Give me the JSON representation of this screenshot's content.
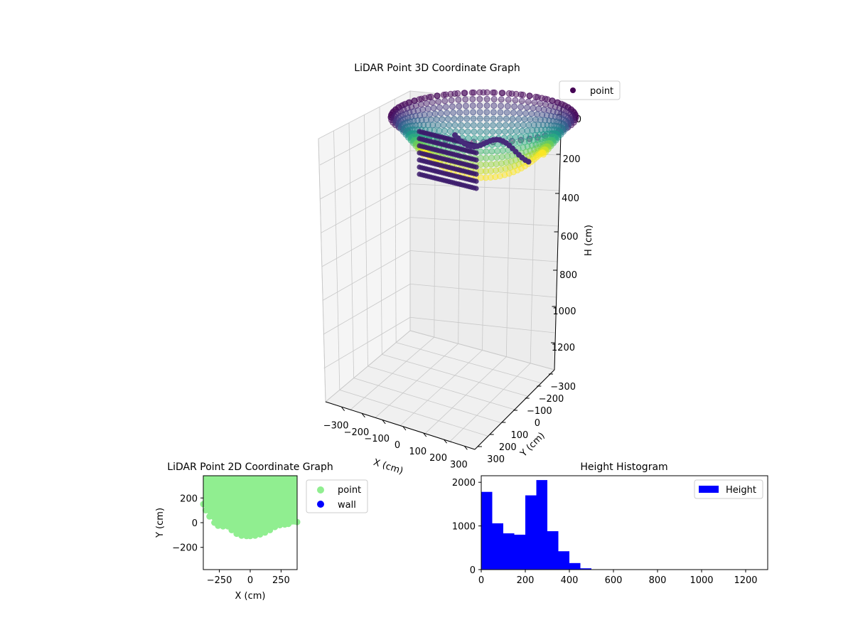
{
  "figure": {
    "background": "#ffffff"
  },
  "chart_data": [
    {
      "type": "scatter",
      "title": "LiDAR Point 3D Coordinate Graph",
      "xlabel": "X (cm)",
      "ylabel": "Y (cm)",
      "zlabel": "H (cm)",
      "xticks": [
        "−300",
        "−200",
        "−100",
        "0",
        "100",
        "200",
        "300"
      ],
      "yticks": [
        "−300",
        "−200",
        "−100",
        "0",
        "100",
        "200",
        "300"
      ],
      "zticks": [
        "0",
        "200",
        "400",
        "600",
        "800",
        "1000",
        "1200"
      ],
      "zinverted": true,
      "grid": true,
      "colormap": "viridis",
      "legend": {
        "position": "top-right",
        "entries": [
          {
            "label": "point",
            "color": "#440154"
          }
        ]
      },
      "series": [
        {
          "name": "point",
          "shape": "bowl",
          "x_range": [
            -350,
            350
          ],
          "y_range": [
            -350,
            350
          ],
          "h_range": [
            0,
            430
          ]
        }
      ]
    },
    {
      "type": "scatter",
      "title": "LiDAR Point 2D Coordinate Graph",
      "xlabel": "X (cm)",
      "ylabel": "Y (cm)",
      "xlim": [
        -380,
        380
      ],
      "ylim": [
        -380,
        380
      ],
      "xticks": [
        "−250",
        "0",
        "250"
      ],
      "yticks": [
        "−200",
        "0",
        "200"
      ],
      "legend": {
        "position": "outside-right",
        "entries": [
          {
            "label": "point",
            "color": "#90ee90"
          },
          {
            "label": "wall",
            "color": "#0000ff"
          }
        ]
      },
      "boundary": {
        "x": [
          -380,
          -360,
          -330,
          -290,
          -260,
          -220,
          -180,
          -150,
          -110,
          -70,
          -30,
          0,
          40,
          80,
          120,
          160,
          200,
          240,
          280,
          310,
          340,
          360,
          380
        ],
        "y": [
          150,
          100,
          50,
          0,
          -25,
          -30,
          -30,
          -60,
          -90,
          -105,
          -108,
          -108,
          -105,
          -95,
          -80,
          -60,
          -35,
          -20,
          -15,
          -10,
          10,
          10,
          5
        ]
      }
    },
    {
      "type": "bar",
      "title": "Height Histogram",
      "xlim": [
        0,
        1300
      ],
      "ylim": [
        0,
        2150
      ],
      "xticks": [
        "0",
        "200",
        "400",
        "600",
        "800",
        "1000",
        "1200"
      ],
      "yticks": [
        "0",
        "1000",
        "2000"
      ],
      "legend": {
        "position": "top-right",
        "entries": [
          {
            "label": "Height",
            "color": "#0000ff"
          }
        ]
      },
      "bin_edges": [
        0,
        50,
        100,
        150,
        200,
        250,
        300,
        350,
        400,
        450,
        500
      ],
      "values": [
        1780,
        1060,
        830,
        800,
        1700,
        2050,
        880,
        420,
        150,
        30
      ]
    }
  ]
}
